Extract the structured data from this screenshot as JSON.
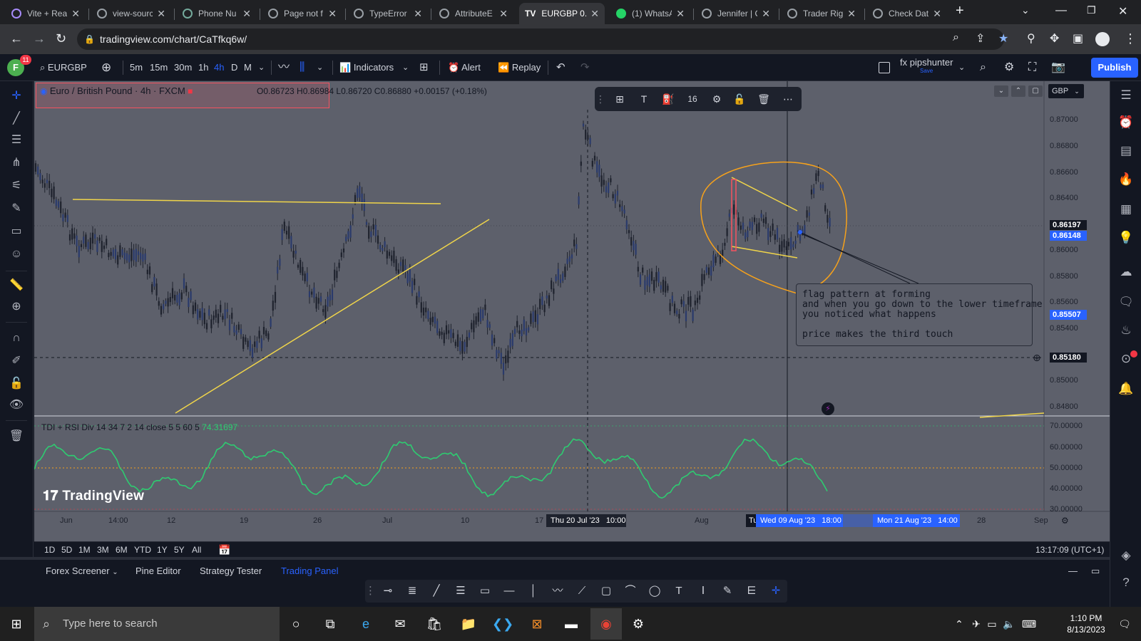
{
  "browser": {
    "tabs": [
      {
        "label": "Vite + Rea",
        "active": false
      },
      {
        "label": "view-sourc",
        "active": false
      },
      {
        "label": "Phone Nu",
        "active": false
      },
      {
        "label": "Page not f",
        "active": false
      },
      {
        "label": "TypeError",
        "active": false
      },
      {
        "label": "AttributeE",
        "active": false
      },
      {
        "label": "EURGBP 0.",
        "active": true
      },
      {
        "label": "(1) WhatsA",
        "active": false
      },
      {
        "label": "Jennifer | C",
        "active": false
      },
      {
        "label": "Trader Rig",
        "active": false
      },
      {
        "label": "Check Dat",
        "active": false
      }
    ],
    "url": "tradingview.com/chart/CaTfkq6w/"
  },
  "toolbar": {
    "avatar_letter": "F",
    "avatar_badge": "11",
    "symbol": "EURGBP",
    "intervals": [
      "5m",
      "15m",
      "30m",
      "1h",
      "4h",
      "D",
      "M"
    ],
    "active_interval": "4h",
    "indicators_label": "Indicators",
    "alert_label": "Alert",
    "replay_label": "Replay",
    "layout_name": "fx pipshunter",
    "layout_sub": "Save",
    "publish_label": "Publish"
  },
  "chart": {
    "legend_title": "Euro / British Pound · 4h · FXCM",
    "ohlc": "O0.86723 H0.86984 L0.86720 C0.86880 +0.00157 (+0.18%)",
    "currency": "GBP",
    "font_size_value": "16",
    "price_labels": [
      "0.87000",
      "0.86800",
      "0.86600",
      "0.86400",
      "0.86000",
      "0.85800",
      "0.85600",
      "0.85400",
      "0.85000",
      "0.84800"
    ],
    "marker_labels": {
      "high": "0.86197",
      "last": "0.86148",
      "low": "0.85507",
      "crosshair": "0.85180"
    },
    "rsi_labels": [
      "70.00000",
      "60.00000",
      "50.00000",
      "40.00000",
      "30.00000"
    ],
    "indicator_legend": "TDI + RSI Div 14 34 7 2 14 close 5 5 60 5",
    "indicator_value": "74.31697",
    "time_labels": [
      "Jun",
      "14:00",
      "12",
      "19",
      "26",
      "Jul",
      "10",
      "17",
      "Aug",
      "28",
      "Sep"
    ],
    "time_crosshair_1": "Thu 20 Jul '23   10:00",
    "time_crosshair_2": "Wed 09 Aug '23   18:00",
    "time_crosshair_3": "Mon 21 Aug '23   14:00",
    "time_crosshair_partial": "Tu",
    "note_lines": [
      "flag pattern at forming",
      "and when you go down to the lower timeframe",
      "you noticed what happens",
      "",
      "price makes the third touch"
    ],
    "watermark": "TradingView"
  },
  "range_bar": {
    "ranges": [
      "1D",
      "5D",
      "1M",
      "3M",
      "6M",
      "YTD",
      "1Y",
      "5Y",
      "All"
    ],
    "time": "13:17:09 (UTC+1)"
  },
  "bottom_panel": {
    "tabs": [
      "Forex Screener",
      "Pine Editor",
      "Strategy Tester",
      "Trading Panel"
    ],
    "active_tab": "Trading Panel"
  },
  "taskbar": {
    "search_placeholder": "Type here to search",
    "time": "1:10 PM",
    "date": "8/13/2023"
  },
  "colors": {
    "accent": "#2962ff",
    "chart_bg": "#5d606b",
    "trendline": "#f0d54a",
    "ellipse": "#f7a21b",
    "rsi_line": "#2ecc71"
  }
}
